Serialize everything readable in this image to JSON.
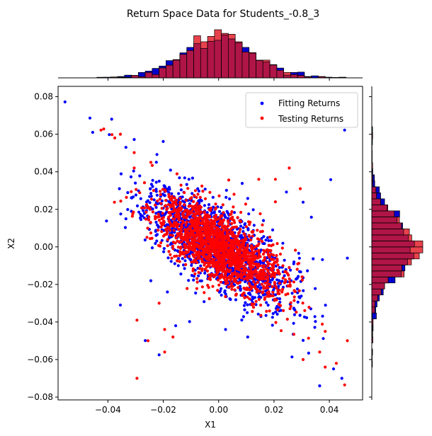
{
  "chart_data": {
    "type": "scatter",
    "title": "Return Space Data for Students_-0.8_3",
    "xlabel": "X1",
    "ylabel": "X2",
    "xlim": [
      -0.058,
      0.052
    ],
    "ylim": [
      -0.0815,
      0.0855
    ],
    "x_ticks": [
      -0.04,
      -0.02,
      0.0,
      0.02,
      0.04
    ],
    "x_tick_labels": [
      "−0.04",
      "−0.02",
      "0.00",
      "0.02",
      "0.04"
    ],
    "y_ticks": [
      -0.08,
      -0.06,
      -0.04,
      -0.02,
      0.0,
      0.02,
      0.04,
      0.06,
      0.08
    ],
    "y_tick_labels": [
      "−0.08",
      "−0.06",
      "−0.04",
      "−0.02",
      "0.00",
      "0.02",
      "0.04",
      "0.06",
      "0.08"
    ],
    "grid": false,
    "legend_position": "upper right",
    "series": [
      {
        "name": "Fitting Returns",
        "color": "#0000ff",
        "marker": "circle",
        "points": [
          [
            -0.0555,
            0.0772
          ],
          [
            -0.0465,
            0.0686
          ],
          [
            -0.0455,
            0.061
          ],
          [
            -0.0395,
            0.0598
          ],
          [
            -0.0305,
            0.0572
          ],
          [
            -0.0335,
            0.053
          ],
          [
            -0.0405,
            0.0138
          ],
          [
            -0.0355,
            -0.031
          ],
          [
            -0.0215,
            -0.0575
          ],
          [
            -0.0265,
            -0.0499
          ],
          [
            0.0245,
            0.0292
          ],
          [
            0.0305,
            0.0238
          ],
          [
            0.0335,
            0.0158
          ],
          [
            0.0405,
            0.0358
          ],
          [
            0.0455,
            0.0622
          ],
          [
            0.0375,
            -0.0068
          ],
          [
            0.0465,
            -0.006
          ],
          [
            0.0365,
            -0.074
          ],
          [
            0.0415,
            -0.065
          ],
          [
            0.0445,
            -0.07
          ],
          [
            -0.0285,
            0.0378
          ],
          [
            -0.0225,
            0.0451
          ],
          [
            0.0085,
            0.0338
          ],
          [
            0.0105,
            0.0258
          ],
          [
            0.0125,
            0.0198
          ],
          [
            -0.0105,
            -0.0398
          ],
          [
            -0.0155,
            -0.042
          ],
          [
            0.0225,
            -0.0338
          ],
          [
            0.0305,
            -0.0498
          ],
          [
            0.0325,
            -0.0566
          ],
          [
            0.0265,
            -0.0586
          ],
          [
            0.0195,
            0.009
          ],
          [
            -0.0185,
            -0.024
          ],
          [
            -0.0245,
            -0.018
          ],
          [
            0.0105,
            -0.048
          ],
          [
            0.0025,
            -0.044
          ]
        ],
        "cluster": {
          "count": 1500,
          "x_sd": 0.0125,
          "slope": -0.84,
          "noise_sd": 0.0105,
          "seed": 11
        }
      },
      {
        "name": "Testing Returns",
        "color": "#ff0000",
        "marker": "circle",
        "points": [
          [
            -0.0415,
            0.0628
          ],
          [
            -0.0425,
            0.0622
          ],
          [
            -0.0385,
            0.0598
          ],
          [
            -0.0355,
            0.06
          ],
          [
            -0.0375,
            0.058
          ],
          [
            -0.0305,
            0.0502
          ],
          [
            -0.0295,
            -0.07
          ],
          [
            -0.0295,
            -0.039
          ],
          [
            -0.0195,
            -0.044
          ],
          [
            -0.0195,
            -0.056
          ],
          [
            0.0385,
            -0.064
          ],
          [
            0.0455,
            -0.0735
          ],
          [
            0.0425,
            -0.062
          ],
          [
            0.0465,
            -0.05
          ],
          [
            0.0365,
            -0.056
          ],
          [
            0.0305,
            -0.06
          ],
          [
            0.0255,
            0.042
          ],
          [
            0.0205,
            0.036
          ],
          [
            -0.0255,
            -0.05
          ],
          [
            0.0385,
            -0.045
          ],
          [
            0.0295,
            0.031
          ],
          [
            -0.0165,
            -0.048
          ],
          [
            0.0205,
            0.024
          ],
          [
            0.0145,
            0.036
          ],
          [
            -0.0245,
            0.045
          ],
          [
            -0.0305,
            0.042
          ],
          [
            -0.0215,
            -0.03
          ],
          [
            0.0255,
            -0.011
          ]
        ],
        "cluster": {
          "count": 1700,
          "x_sd": 0.0115,
          "slope": -0.8,
          "noise_sd": 0.0095,
          "seed": 29
        }
      }
    ],
    "histograms": {
      "x_bins": {
        "start": -0.044,
        "width": 0.0025,
        "count": 36
      },
      "y_bins": {
        "start": -0.064,
        "width": 0.0032,
        "count": 40
      },
      "fitting_color": "#0000cc",
      "testing_color": "#e8424c",
      "overlap_color": "#b01548"
    }
  }
}
